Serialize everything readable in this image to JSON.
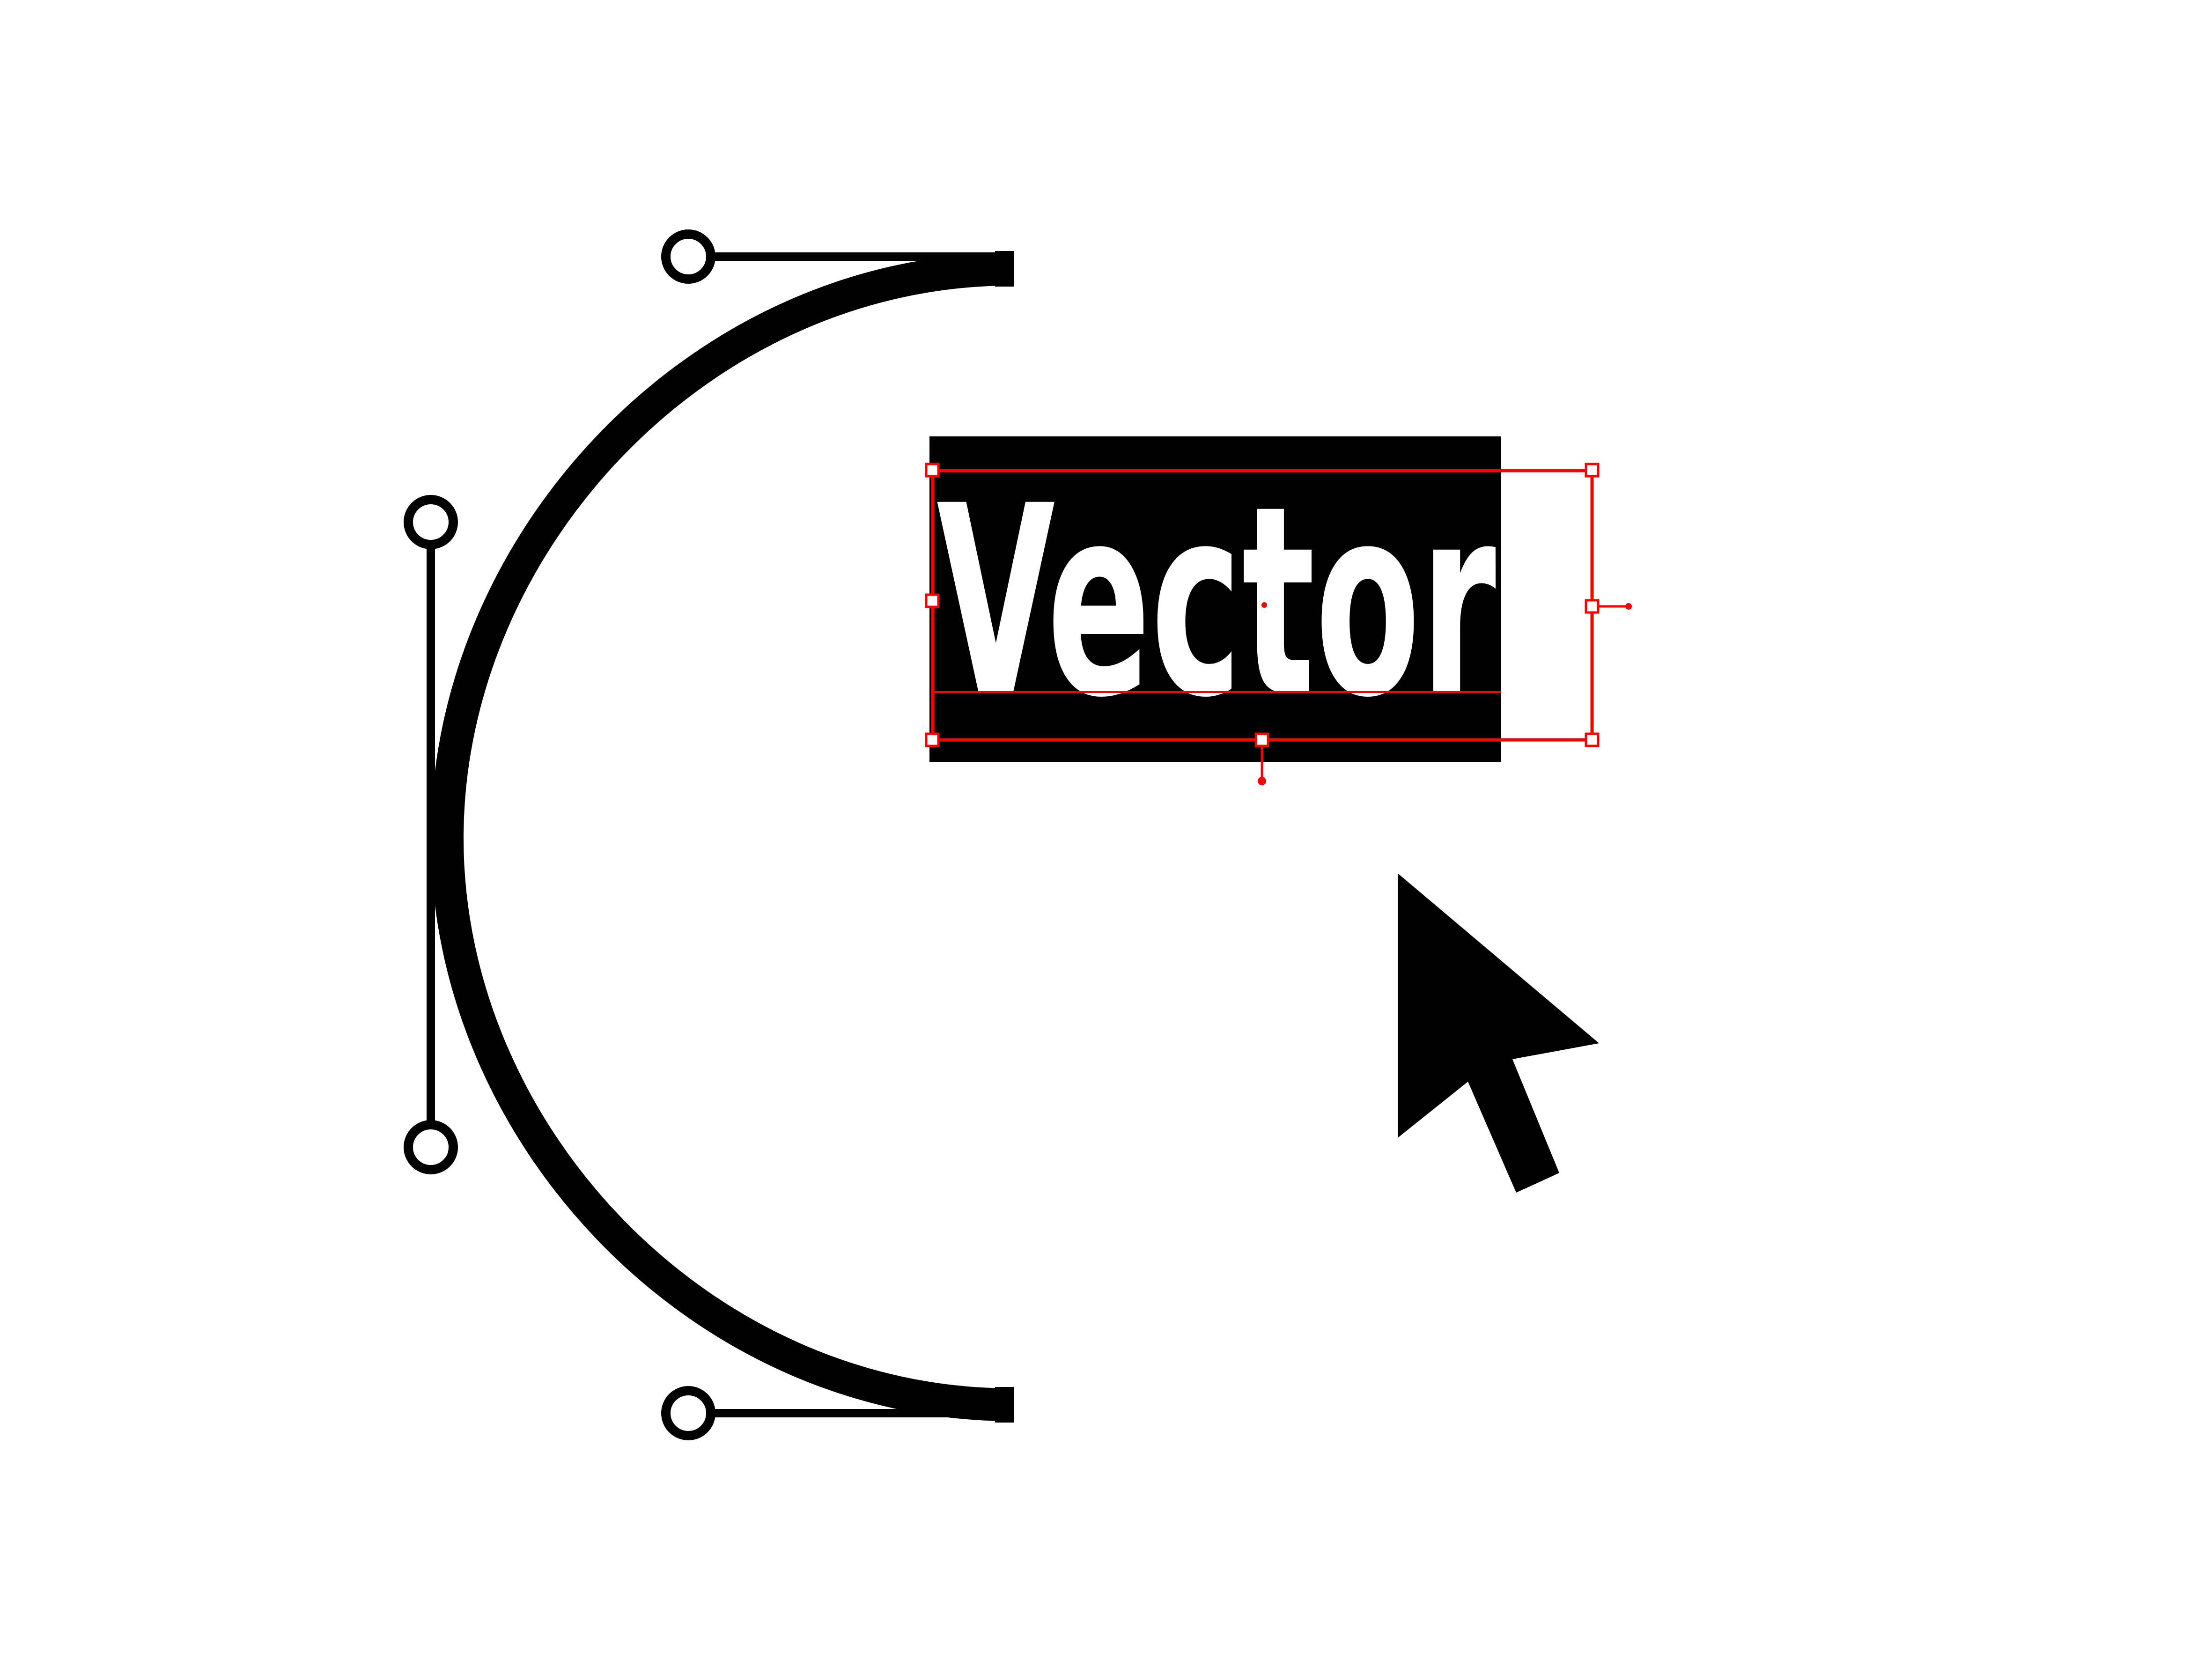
{
  "illustration": {
    "word": "Vector",
    "colors": {
      "background": "#ffffff",
      "ink": "#000000",
      "text": "#ffffff",
      "selection": "#ff0000"
    },
    "icons": {
      "curve": "bezier-curve-icon",
      "cursor": "mouse-pointer-icon",
      "selection": "text-selection-box"
    }
  }
}
